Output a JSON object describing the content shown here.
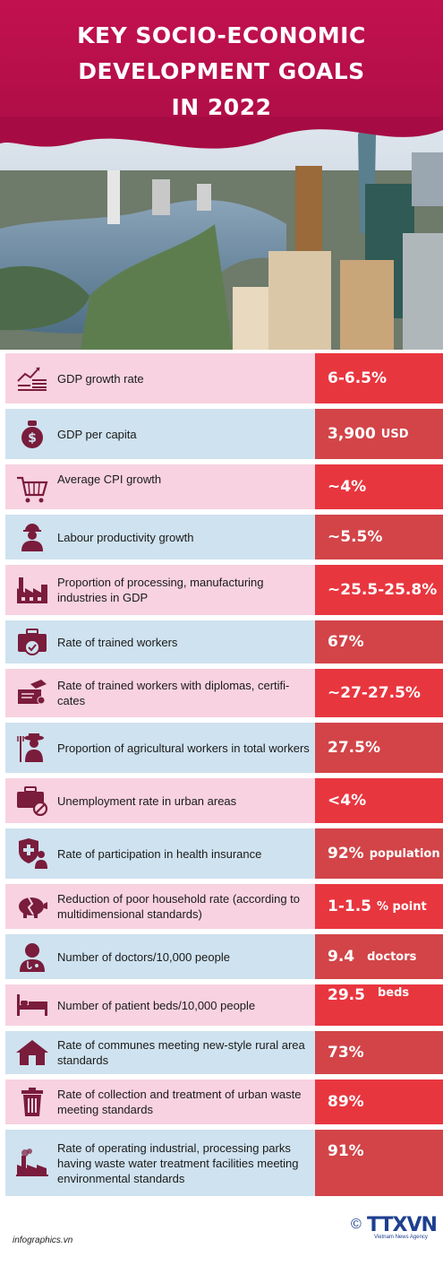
{
  "header": {
    "title_line1": "KEY SOCIO-ECONOMIC",
    "title_line2": "DEVELOPMENT GOALS",
    "title_line3": "IN 2022",
    "color": "#c2114f"
  },
  "goals": [
    {
      "icon": "growth-chart-icon",
      "label": "GDP growth rate",
      "value": "6-6.5%",
      "unit": ""
    },
    {
      "icon": "money-bag-icon",
      "label": "GDP per capita",
      "value": "3,900",
      "unit": "USD"
    },
    {
      "icon": "shopping-cart-icon",
      "label": "Average CPI growth",
      "value": "~4%",
      "unit": ""
    },
    {
      "icon": "worker-icon",
      "label": "Labour productivity growth",
      "value": "~5.5%",
      "unit": ""
    },
    {
      "icon": "factory-icon",
      "label": "Proportion of processing, manufacturing industries in GDP",
      "value": "~25.5-25.8%",
      "unit": ""
    },
    {
      "icon": "briefcase-check-icon",
      "label": "Rate of trained workers",
      "value": "67%",
      "unit": ""
    },
    {
      "icon": "diploma-icon",
      "label": "Rate of trained workers with diplomas, certifi-cates",
      "value": "~27-27.5%",
      "unit": ""
    },
    {
      "icon": "farmer-icon",
      "label": "Proportion of agricultural workers in total workers",
      "value": "27.5%",
      "unit": ""
    },
    {
      "icon": "briefcase-ban-icon",
      "label": "Unemployment rate in urban areas",
      "value": "<4%",
      "unit": ""
    },
    {
      "icon": "health-insurance-icon",
      "label": "Rate of participation in health insurance",
      "value": "92%",
      "unit": "population"
    },
    {
      "icon": "broken-piggy-bank-icon",
      "label": "Reduction of poor household rate (according to multidimensional standards)",
      "value": "1-1.5",
      "unit": "% point"
    },
    {
      "icon": "doctor-icon",
      "label": "Number of doctors/10,000 people",
      "value": "9.4",
      "unit": "doctors"
    },
    {
      "icon": "hospital-bed-icon",
      "label": "Number of patient beds/10,000 people",
      "value": "29.5",
      "unit": "beds"
    },
    {
      "icon": "rural-house-icon",
      "label": "Rate of communes meeting new-style rural area standards",
      "value": "73%",
      "unit": ""
    },
    {
      "icon": "trash-bin-icon",
      "label": "Rate of collection and treatment of urban waste meeting standards",
      "value": "89%",
      "unit": ""
    },
    {
      "icon": "industrial-park-icon",
      "label": "Rate of operating industrial, processing parks having waste water treatment facilities meeting environmental standards",
      "value": "91%",
      "unit": ""
    }
  ],
  "footer": {
    "source": "infographics.vn",
    "logo_text": "TTXVN",
    "copyright": "©",
    "agency": "Vietnam News Agency"
  },
  "colors": {
    "pink_row": "#f8d2e0",
    "blue_row": "#cfe2ef",
    "value_red": "#e8363f",
    "icon_color": "#7a1c3c"
  }
}
